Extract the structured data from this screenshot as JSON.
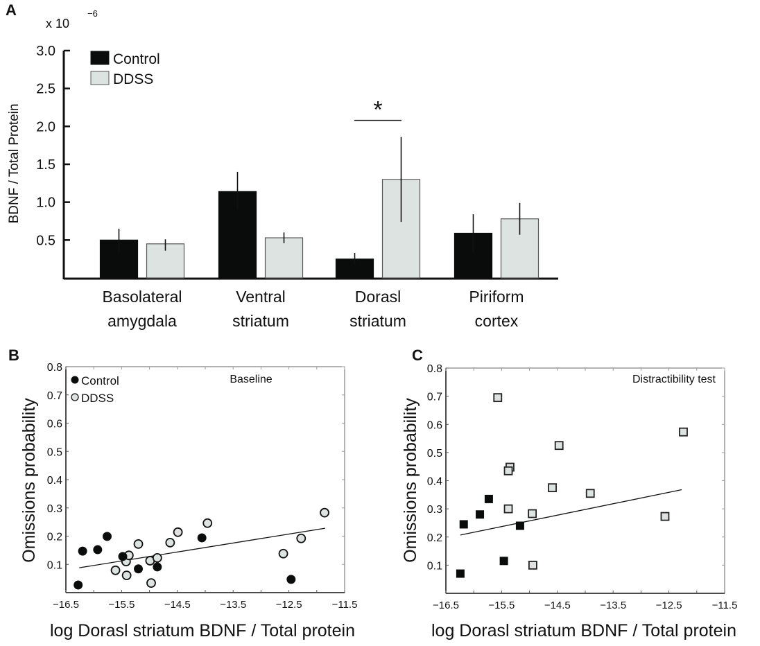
{
  "panels": {
    "a": {
      "label": "A"
    },
    "b": {
      "label": "B"
    },
    "c": {
      "label": "C"
    }
  },
  "colors": {
    "control": "#0a0c0b",
    "ddss": "#dde3e0",
    "ddss_edge": "#555555"
  },
  "chart_data": [
    {
      "type": "bar",
      "panel": "A",
      "title": "",
      "ylabel": "BDNF / Total Protein",
      "yscale_label": "x 10",
      "yscale_exponent": "−6",
      "ylim": [
        0,
        3.0
      ],
      "yticks": [
        "0.5",
        "1.0",
        "1.5",
        "2.0",
        "2.5",
        "3.0"
      ],
      "ytick_values": [
        0.5,
        1.0,
        1.5,
        2.0,
        2.5,
        3.0
      ],
      "categories": [
        {
          "line1": "Basolateral",
          "line2": "amygdala"
        },
        {
          "line1": "Ventral",
          "line2": "striatum"
        },
        {
          "line1": "Dorasl",
          "line2": "striatum"
        },
        {
          "line1": "Piriform",
          "line2": "cortex"
        }
      ],
      "series": [
        {
          "name": "Control",
          "values": [
            0.5,
            1.14,
            0.25,
            0.59
          ],
          "err_low": [
            0.34,
            0.9,
            0.18,
            0.34
          ],
          "err_high": [
            0.65,
            1.4,
            0.33,
            0.84
          ]
        },
        {
          "name": "DDSS",
          "values": [
            0.45,
            0.53,
            1.3,
            0.78
          ],
          "err_low": [
            0.36,
            0.46,
            0.74,
            0.57
          ],
          "err_high": [
            0.51,
            0.6,
            1.86,
            0.99
          ]
        }
      ],
      "legend": {
        "placement": "top-left",
        "entries": [
          "Control",
          "DDSS"
        ]
      },
      "annotations": [
        {
          "text": "*",
          "category_index": 2,
          "y": 2.08
        }
      ]
    },
    {
      "type": "scatter",
      "panel": "B",
      "title": "Baseline",
      "xlabel": "log Dorasl striatum BDNF / Total protein",
      "ylabel": "Omissions probability",
      "xlim": [
        -16.5,
        -11.5
      ],
      "ylim": [
        0,
        0.8
      ],
      "xticks": [
        "−16.5",
        "−15.5",
        "−14.5",
        "−13.5",
        "−12.5",
        "−11.5"
      ],
      "xtick_values": [
        -16.5,
        -15.5,
        -14.5,
        -13.5,
        -12.5,
        -11.5
      ],
      "yticks": [
        "0.1",
        "0.2",
        "0.3",
        "0.4",
        "0.5",
        "0.6",
        "0.7",
        "0.8"
      ],
      "ytick_values": [
        0.1,
        0.2,
        0.3,
        0.4,
        0.5,
        0.6,
        0.7,
        0.8
      ],
      "marker": "circle",
      "legend": {
        "placement": "top-left",
        "entries": [
          "Control",
          "DDSS"
        ]
      },
      "series": [
        {
          "name": "Control",
          "points": [
            [
              -16.28,
              0.027
            ],
            [
              -16.2,
              0.147
            ],
            [
              -15.93,
              0.152
            ],
            [
              -15.76,
              0.199
            ],
            [
              -15.48,
              0.128
            ],
            [
              -15.2,
              0.084
            ],
            [
              -14.86,
              0.091
            ],
            [
              -14.06,
              0.194
            ],
            [
              -12.46,
              0.047
            ]
          ]
        },
        {
          "name": "DDSS",
          "points": [
            [
              -15.61,
              0.079
            ],
            [
              -15.41,
              0.061
            ],
            [
              -15.42,
              0.11
            ],
            [
              -15.37,
              0.132
            ],
            [
              -15.2,
              0.172
            ],
            [
              -14.99,
              0.113
            ],
            [
              -14.97,
              0.034
            ],
            [
              -14.86,
              0.123
            ],
            [
              -14.63,
              0.177
            ],
            [
              -14.49,
              0.214
            ],
            [
              -13.96,
              0.246
            ],
            [
              -12.6,
              0.138
            ],
            [
              -12.28,
              0.192
            ],
            [
              -11.86,
              0.283
            ]
          ]
        }
      ],
      "fit_line": [
        [
          -16.26,
          0.088
        ],
        [
          -11.85,
          0.228
        ]
      ]
    },
    {
      "type": "scatter",
      "panel": "C",
      "title": "Distractibility test",
      "xlabel": "log Dorasl striatum BDNF / Total protein",
      "ylabel": "Omissions probability",
      "xlim": [
        -16.5,
        -11.5
      ],
      "ylim": [
        0,
        0.8
      ],
      "xticks": [
        "−16.5",
        "−15.5",
        "−14.5",
        "−13.5",
        "−12.5",
        "−11.5"
      ],
      "xtick_values": [
        -16.5,
        -15.5,
        -14.5,
        -13.5,
        -12.5,
        -11.5
      ],
      "yticks": [
        "0.1",
        "0.2",
        "0.3",
        "0.4",
        "0.5",
        "0.6",
        "0.7",
        "0.8"
      ],
      "ytick_values": [
        0.1,
        0.2,
        0.3,
        0.4,
        0.5,
        0.6,
        0.7,
        0.8
      ],
      "marker": "square",
      "series": [
        {
          "name": "Control",
          "points": [
            [
              -16.24,
              0.07
            ],
            [
              -16.18,
              0.245
            ],
            [
              -15.89,
              0.28
            ],
            [
              -15.73,
              0.335
            ],
            [
              -15.46,
              0.115
            ],
            [
              -15.17,
              0.24
            ]
          ]
        },
        {
          "name": "DDSS",
          "points": [
            [
              -15.57,
              0.695
            ],
            [
              -15.35,
              0.448
            ],
            [
              -15.38,
              0.435
            ],
            [
              -15.38,
              0.3
            ],
            [
              -14.95,
              0.283
            ],
            [
              -14.94,
              0.1
            ],
            [
              -14.59,
              0.375
            ],
            [
              -14.47,
              0.525
            ],
            [
              -13.91,
              0.355
            ],
            [
              -12.57,
              0.273
            ],
            [
              -12.24,
              0.573
            ]
          ]
        }
      ],
      "fit_line": [
        [
          -16.24,
          0.207
        ],
        [
          -12.27,
          0.368
        ]
      ]
    }
  ]
}
